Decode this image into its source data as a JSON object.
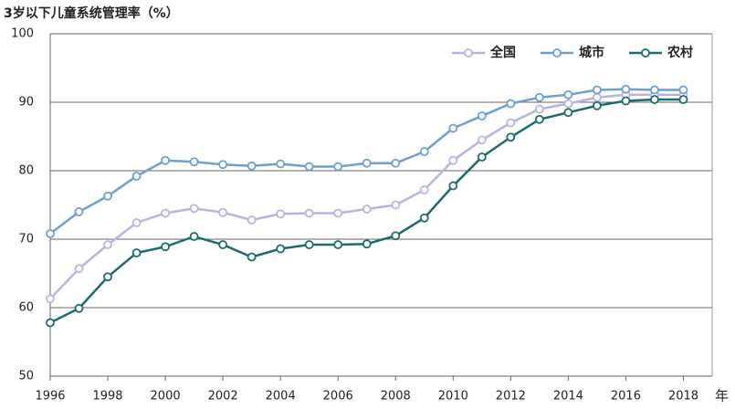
{
  "chart_data": {
    "type": "line",
    "title": "3岁以下儿童系统管理率（%）",
    "x_label": "年",
    "x": [
      1996,
      1997,
      1998,
      1999,
      2000,
      2001,
      2002,
      2003,
      2004,
      2005,
      2006,
      2007,
      2008,
      2009,
      2010,
      2011,
      2012,
      2013,
      2014,
      2015,
      2016,
      2017,
      2018
    ],
    "series": [
      {
        "name": "全国",
        "color": "#b7b4e2",
        "values": [
          61.3,
          65.7,
          69.2,
          72.4,
          73.8,
          74.5,
          73.9,
          72.8,
          73.7,
          73.8,
          73.8,
          74.4,
          75.0,
          77.2,
          81.5,
          84.5,
          87.0,
          89.0,
          89.8,
          90.7,
          91.1,
          91.1,
          91.1
        ]
      },
      {
        "name": "城市",
        "color": "#6f9fd0",
        "values": [
          70.8,
          74.0,
          76.3,
          79.2,
          81.5,
          81.3,
          80.9,
          80.7,
          81.0,
          80.6,
          80.6,
          81.1,
          81.1,
          82.8,
          86.2,
          88.0,
          89.8,
          90.7,
          91.1,
          91.8,
          91.9,
          91.8,
          91.8
        ]
      },
      {
        "name": "农村",
        "color": "#1f6b6b",
        "values": [
          57.8,
          59.9,
          64.5,
          68.0,
          68.9,
          70.4,
          69.2,
          67.4,
          68.6,
          69.2,
          69.2,
          69.3,
          70.5,
          73.1,
          77.8,
          82.0,
          84.9,
          87.5,
          88.5,
          89.5,
          90.2,
          90.4,
          90.4
        ]
      }
    ],
    "xlim": [
      1996,
      2019
    ],
    "xticks": [
      1996,
      1998,
      2000,
      2002,
      2004,
      2006,
      2008,
      2010,
      2012,
      2014,
      2016,
      2018
    ],
    "ylim": [
      50,
      100
    ],
    "yticks": [
      50,
      60,
      70,
      80,
      90,
      100
    ],
    "grid": true,
    "legend": "top-right"
  }
}
